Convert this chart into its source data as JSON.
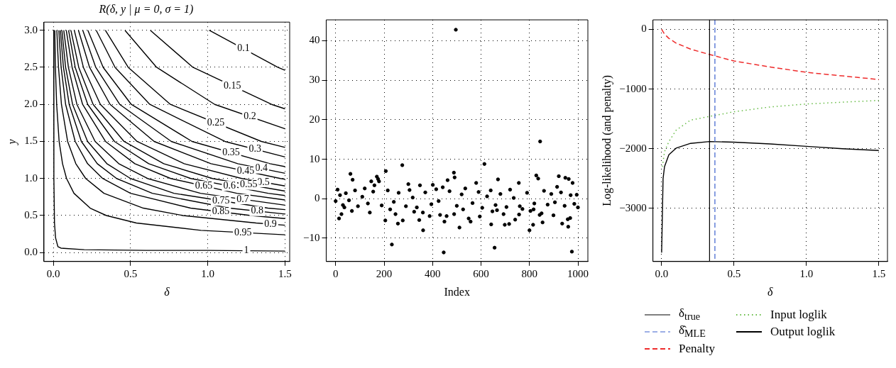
{
  "chart_data": [
    {
      "type": "line",
      "title": "R(δ, y | μ = 0, σ = 1)",
      "xlabel": "δ",
      "ylabel": "y",
      "xlim": [
        -0.06,
        1.53
      ],
      "ylim": [
        -0.12,
        3.11
      ],
      "xticks": [
        {
          "value": 0,
          "label": "0.0"
        },
        {
          "value": 0.5,
          "label": "0.5"
        },
        {
          "value": 1,
          "label": "1.0"
        },
        {
          "value": 1.5,
          "label": "1.5"
        }
      ],
      "yticks": [
        {
          "value": 0,
          "label": "0.0"
        },
        {
          "value": 0.5,
          "label": "0.5"
        },
        {
          "value": 1,
          "label": "1.0"
        },
        {
          "value": 1.5,
          "label": "1.5"
        },
        {
          "value": 2,
          "label": "2.0"
        },
        {
          "value": 2.5,
          "label": "2.5"
        },
        {
          "value": 3,
          "label": "3.0"
        }
      ],
      "grid": true,
      "legend": false,
      "marker": "none",
      "line_style": "solid",
      "series": [
        {
          "name": "0.1",
          "color": "#000000",
          "x": [
            1.009,
            1.453,
            1.5
          ],
          "values": [
            3.0,
            2.5,
            2.46
          ]
        },
        {
          "name": "0.15",
          "color": "#000000",
          "x": [
            0.628,
            0.904,
            1.413,
            1.5
          ],
          "values": [
            3.0,
            2.5,
            2.0,
            1.94
          ]
        },
        {
          "name": "0.2",
          "color": "#000000",
          "x": [
            0.464,
            0.669,
            1.045,
            1.5
          ],
          "values": [
            3.0,
            2.5,
            2.0,
            1.67
          ]
        },
        {
          "name": "0.25",
          "color": "#000000",
          "x": [
            0.337,
            0.485,
            0.758,
            1.347,
            1.5
          ],
          "values": [
            3.0,
            2.5,
            2.0,
            1.5,
            1.42
          ]
        },
        {
          "name": "0.3",
          "color": "#000000",
          "x": [
            0.278,
            0.4,
            0.625,
            1.111,
            1.5
          ],
          "values": [
            3.0,
            2.5,
            2.0,
            1.5,
            1.29
          ]
        },
        {
          "name": "0.35",
          "color": "#000000",
          "x": [
            0.224,
            0.323,
            0.505,
            0.898,
            1.403,
            1.5
          ],
          "values": [
            3.0,
            2.5,
            2.0,
            1.5,
            1.2,
            1.16
          ]
        },
        {
          "name": "0.4",
          "color": "#000000",
          "x": [
            0.191,
            0.275,
            0.43,
            0.764,
            1.194,
            1.5
          ],
          "values": [
            3.0,
            2.5,
            2.0,
            1.5,
            1.2,
            1.07
          ]
        },
        {
          "name": "0.45",
          "color": "#000000",
          "x": [
            0.163,
            0.235,
            0.368,
            0.653,
            1.021,
            1.47,
            1.5
          ],
          "values": [
            3.0,
            2.5,
            2.0,
            1.5,
            1.2,
            1.0,
            0.99
          ]
        },
        {
          "name": "0.5",
          "color": "#000000",
          "x": [
            0.136,
            0.195,
            0.305,
            0.542,
            0.847,
            1.22,
            1.5
          ],
          "values": [
            3.0,
            2.5,
            2.0,
            1.5,
            1.2,
            1.0,
            0.9
          ]
        },
        {
          "name": "0.55",
          "color": "#000000",
          "x": [
            0.114,
            0.165,
            0.258,
            0.458,
            0.715,
            1.03,
            1.5
          ],
          "values": [
            3.0,
            2.5,
            2.0,
            1.5,
            1.2,
            1.0,
            0.83
          ]
        },
        {
          "name": "0.6",
          "color": "#000000",
          "x": [
            0.099,
            0.142,
            0.223,
            0.396,
            0.618,
            0.89,
            1.391,
            1.5
          ],
          "values": [
            3.0,
            2.5,
            2.0,
            1.5,
            1.2,
            1.0,
            0.8,
            0.77
          ]
        },
        {
          "name": "0.65",
          "color": "#000000",
          "x": [
            0.084,
            0.122,
            0.19,
            0.338,
            0.528,
            0.76,
            1.188,
            1.5
          ],
          "values": [
            3.0,
            2.5,
            2.0,
            1.5,
            1.2,
            1.0,
            0.8,
            0.71
          ]
        },
        {
          "name": "0.7",
          "color": "#000000",
          "x": [
            0.068,
            0.098,
            0.153,
            0.271,
            0.424,
            0.61,
            0.953,
            1.5
          ],
          "values": [
            3.0,
            2.5,
            2.0,
            1.5,
            1.2,
            1.0,
            0.8,
            0.64
          ]
        },
        {
          "name": "0.75",
          "color": "#000000",
          "x": [
            0.056,
            0.08,
            0.125,
            0.222,
            0.347,
            0.5,
            0.781,
            1.389,
            1.5
          ],
          "values": [
            3.0,
            2.5,
            2.0,
            1.5,
            1.2,
            1.0,
            0.8,
            0.6,
            0.58
          ]
        },
        {
          "name": "0.8",
          "color": "#000000",
          "x": [
            0.046,
            0.066,
            0.103,
            0.182,
            0.285,
            0.41,
            0.641,
            1.139,
            1.5
          ],
          "values": [
            3.0,
            2.5,
            2.0,
            1.5,
            1.2,
            1.0,
            0.8,
            0.6,
            0.52
          ]
        },
        {
          "name": "0.85",
          "color": "#000000",
          "x": [
            0.036,
            0.051,
            0.08,
            0.142,
            0.222,
            0.32,
            0.5,
            0.889,
            1.28,
            1.5
          ],
          "values": [
            3.0,
            2.5,
            2.0,
            1.5,
            1.2,
            1.0,
            0.8,
            0.6,
            0.5,
            0.46
          ]
        },
        {
          "name": "0.9",
          "color": "#000000",
          "x": [
            0.023,
            0.034,
            0.053,
            0.093,
            0.146,
            0.21,
            0.328,
            0.583,
            0.84,
            1.313,
            1.5
          ],
          "values": [
            3.0,
            2.5,
            2.0,
            1.5,
            1.2,
            1.0,
            0.8,
            0.6,
            0.5,
            0.4,
            0.37
          ]
        },
        {
          "name": "0.95",
          "color": "#000000",
          "x": [
            0.01,
            0.014,
            0.022,
            0.038,
            0.06,
            0.086,
            0.134,
            0.239,
            0.344,
            0.538,
            0.956,
            1.5
          ],
          "values": [
            3.0,
            2.5,
            2.0,
            1.5,
            1.2,
            1.0,
            0.8,
            0.6,
            0.5,
            0.4,
            0.3,
            0.24
          ]
        },
        {
          "name": "1",
          "color": "#000000",
          "x": [
            0.003,
            0.004,
            0.008,
            0.015,
            0.03,
            0.05,
            0.2,
            0.6,
            1.0,
            1.5
          ],
          "values": [
            3.0,
            1.0,
            0.4,
            0.2,
            0.08,
            0.06,
            0.04,
            0.03,
            0.03,
            0.02
          ]
        }
      ]
    },
    {
      "type": "scatter",
      "xlabel": "Index",
      "xlim": [
        -39,
        1041
      ],
      "ylim": [
        -15.9,
        45.3
      ],
      "xticks": [
        0,
        200,
        400,
        600,
        800,
        1000
      ],
      "yticks": [
        {
          "value": -10,
          "label": "−10"
        },
        0,
        10,
        20,
        30,
        40
      ],
      "grid": true,
      "legend": false,
      "marker": "circle",
      "color": "#000000",
      "x": [
        0,
        8,
        14,
        18,
        24,
        30,
        36,
        42,
        55,
        61,
        67,
        70,
        80,
        92,
        110,
        120,
        133,
        141,
        147,
        155,
        160,
        170,
        175,
        179,
        190,
        205,
        207,
        215,
        225,
        232,
        240,
        247,
        257,
        260,
        275,
        277,
        290,
        300,
        305,
        318,
        324,
        335,
        345,
        348,
        360,
        361,
        370,
        388,
        395,
        401,
        415,
        425,
        431,
        442,
        446,
        449,
        458,
        462,
        470,
        488,
        489,
        491,
        496,
        500,
        511,
        520,
        526,
        535,
        549,
        557,
        565,
        580,
        590,
        595,
        605,
        614,
        625,
        640,
        642,
        647,
        656,
        660,
        666,
        670,
        680,
        693,
        698,
        705,
        716,
        720,
        735,
        741,
        756,
        757,
        760,
        771,
        790,
        800,
        804,
        815,
        817,
        820,
        828,
        836,
        842,
        844,
        850,
        854,
        860,
        875,
        890,
        899,
        905,
        914,
        921,
        930,
        935,
        945,
        948,
        958,
        960,
        962,
        968,
        970,
        975,
        978,
        985,
        995,
        1000
      ],
      "values": [
        -0.6,
        2.3,
        -5.0,
        0.9,
        -3.9,
        -1.6,
        -2.2,
        1.4,
        -0.4,
        6.3,
        -3.1,
        4.8,
        2.1,
        -1.9,
        0.5,
        2.6,
        -1.2,
        -3.5,
        4.4,
        1.8,
        3.4,
        5.6,
        5.0,
        4.4,
        -1.7,
        -5.5,
        7.0,
        2.1,
        -2.7,
        -11.6,
        -0.8,
        -3.9,
        -6.3,
        1.5,
        8.5,
        -5.5,
        -1.9,
        3.7,
        2.2,
        0.3,
        -3.3,
        -2.2,
        -5.4,
        3.4,
        -3.5,
        -8.0,
        1.6,
        -4.4,
        -1.4,
        3.5,
        2.4,
        -0.6,
        -4.1,
        2.9,
        -13.6,
        -5.8,
        -4.4,
        4.7,
        1.9,
        6.6,
        -3.9,
        5.4,
        42.8,
        -1.8,
        -7.3,
        1.1,
        -2.7,
        2.6,
        -5.0,
        -5.8,
        -1.1,
        4.0,
        1.7,
        -4.5,
        -2.3,
        8.8,
        0.6,
        2.1,
        -6.5,
        -3.2,
        -12.4,
        -1.6,
        -2.9,
        4.9,
        1.2,
        -3.9,
        -6.6,
        -2.1,
        -6.4,
        2.3,
        0.2,
        -5.3,
        4.0,
        -4.0,
        -1.9,
        -2.6,
        1.5,
        -8.0,
        -3.1,
        -6.6,
        -2.7,
        -1.2,
        5.9,
        5.1,
        -4.1,
        14.5,
        -3.7,
        -6.0,
        2.0,
        -1.5,
        1.2,
        -4.2,
        -0.9,
        3.0,
        5.7,
        1.6,
        -6.3,
        -1.8,
        5.3,
        -5.2,
        -7.1,
        5.0,
        -4.9,
        0.9,
        -13.4,
        4.0,
        -1.3,
        1.0,
        -2.2
      ]
    },
    {
      "type": "line",
      "xlabel": "δ",
      "ylabel": "Log-likelihood (and penalty)",
      "xlim": [
        -0.06,
        1.56
      ],
      "ylim": [
        -3890,
        160
      ],
      "xticks": [
        {
          "value": 0,
          "label": "0.0"
        },
        {
          "value": 0.5,
          "label": "0.5"
        },
        {
          "value": 1,
          "label": "1.0"
        },
        {
          "value": 1.5,
          "label": "1.5"
        }
      ],
      "yticks": [
        {
          "value": -3000,
          "label": "−3000"
        },
        {
          "value": -2000,
          "label": "−2000"
        },
        {
          "value": -1000,
          "label": "−1000"
        },
        0
      ],
      "grid": true,
      "legend": "bottom",
      "marker": "none",
      "ref_lines": [
        {
          "axis": "x",
          "value": 0.331,
          "label": "δ$_{true}$",
          "color": "#000000",
          "line_style": "solid"
        },
        {
          "axis": "x",
          "value": 0.368,
          "label": "δ̂$_{MLE}$",
          "color": "#3a5fcd",
          "line_style": "dashed"
        }
      ],
      "series": [
        {
          "name": "Penalty",
          "color": "#ee2c2c",
          "line_style": "dashed",
          "x": [
            0,
            0.02,
            0.05,
            0.1,
            0.2,
            0.33,
            0.5,
            0.75,
            1.0,
            1.25,
            1.5
          ],
          "values": [
            0,
            -80,
            -150,
            -230,
            -330,
            -420,
            -530,
            -630,
            -720,
            -780,
            -840
          ]
        },
        {
          "name": "Input loglik",
          "color": "#66bb44",
          "line_style": "dotted",
          "x": [
            0.005,
            0.02,
            0.05,
            0.1,
            0.2,
            0.37,
            0.5,
            0.75,
            1.0,
            1.25,
            1.5
          ],
          "values": [
            -2300,
            -2050,
            -1880,
            -1690,
            -1520,
            -1440,
            -1380,
            -1300,
            -1250,
            -1220,
            -1190
          ]
        },
        {
          "name": "Output loglik",
          "color": "#000000",
          "line_style": "solid",
          "x": [
            0,
            0.01,
            0.02,
            0.05,
            0.1,
            0.2,
            0.33,
            0.5,
            0.75,
            1.0,
            1.25,
            1.5
          ],
          "values": [
            -3740,
            -2500,
            -2300,
            -2100,
            -1990,
            -1910,
            -1880,
            -1890,
            -1920,
            -1960,
            -2000,
            -2030
          ]
        }
      ]
    }
  ]
}
